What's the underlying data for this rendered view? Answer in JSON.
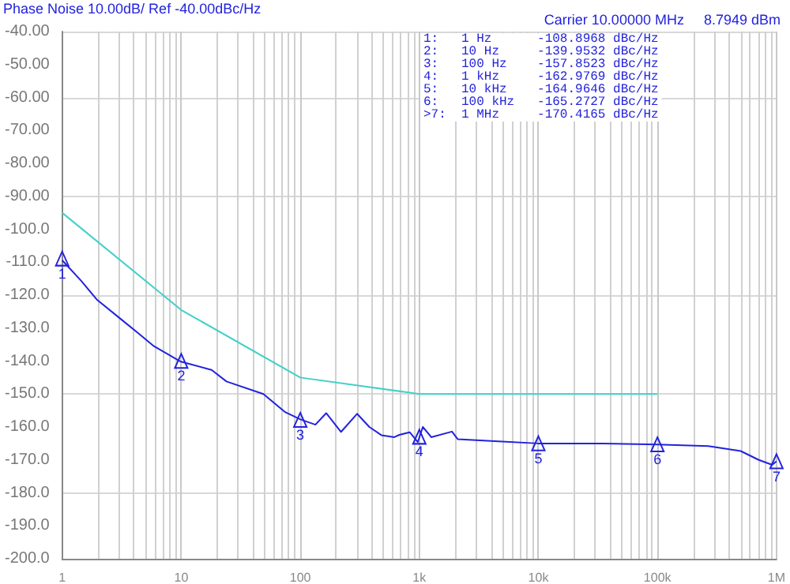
{
  "chart_data": {
    "type": "line",
    "title": "Phase Noise 10.00dB/ Ref -40.00dBc/Hz",
    "subtitle": "Carrier 10.00000 MHz     8.7949 dBm",
    "log": "x",
    "grid": true,
    "marker": "none",
    "line_style": "solid",
    "xlim": [
      1,
      1000000
    ],
    "xticks": [
      {
        "value": 1,
        "label": "1"
      },
      {
        "value": 10,
        "label": "10"
      },
      {
        "value": 100,
        "label": "100"
      },
      {
        "value": 1000,
        "label": "1k"
      },
      {
        "value": 10000,
        "label": "10k"
      },
      {
        "value": 100000,
        "label": "100k"
      },
      {
        "value": 1000000,
        "label": "1M"
      }
    ],
    "ylim": [
      -200,
      -40
    ],
    "yticks": [
      {
        "value": -40,
        "label": "-40.00"
      },
      {
        "value": -50,
        "label": "-50.00"
      },
      {
        "value": -60,
        "label": "-60.00"
      },
      {
        "value": -70,
        "label": "-70.00"
      },
      {
        "value": -80,
        "label": "-80.00"
      },
      {
        "value": -90,
        "label": "-90.00"
      },
      {
        "value": -100,
        "label": "-100.0"
      },
      {
        "value": -110,
        "label": "-110.0"
      },
      {
        "value": -120,
        "label": "-120.0"
      },
      {
        "value": -130,
        "label": "-130.0"
      },
      {
        "value": -140,
        "label": "-140.0"
      },
      {
        "value": -150,
        "label": "-150.0"
      },
      {
        "value": -160,
        "label": "-160.0"
      },
      {
        "value": -170,
        "label": "-170.0"
      },
      {
        "value": -180,
        "label": "-180.0"
      },
      {
        "value": -190,
        "label": "-190.0"
      },
      {
        "value": -200,
        "label": "-200.0"
      }
    ],
    "series": [
      {
        "color": "#40d0c8",
        "x": [
          1,
          10,
          100,
          1000,
          100000
        ],
        "values": [
          -95,
          -124.5,
          -145,
          -150,
          -150
        ]
      },
      {
        "color": "#2222dd",
        "x": [
          1,
          1.44,
          1.95,
          3.07,
          4.4,
          5.9,
          9.8,
          18,
          24,
          49,
          74,
          100,
          134,
          165,
          220,
          300,
          380,
          480,
          617,
          680,
          830,
          970,
          1070,
          1260,
          1880,
          2100,
          4600,
          10000,
          35000,
          100000,
          268000,
          500000,
          710000,
          920000,
          1000000
        ],
        "values": [
          -109.4,
          -115.6,
          -121.3,
          -127.1,
          -131.7,
          -135.5,
          -140.1,
          -142.7,
          -146.2,
          -150,
          -155.4,
          -157.7,
          -159.3,
          -155.8,
          -161.5,
          -156,
          -160,
          -162.5,
          -163.1,
          -162.4,
          -161.6,
          -164.6,
          -160,
          -163.1,
          -161.4,
          -163.7,
          -164.4,
          -165,
          -165,
          -165.3,
          -165.8,
          -167.3,
          -170,
          -171.5,
          -170.4
        ]
      }
    ],
    "annotations": [
      {
        "text": "1",
        "x": 1,
        "y": -108.8968
      },
      {
        "text": "2",
        "x": 10,
        "y": -139.9532
      },
      {
        "text": "3",
        "x": 100,
        "y": -157.8523
      },
      {
        "text": "4",
        "x": 1000,
        "y": -162.9769
      },
      {
        "text": "5",
        "x": 10000,
        "y": -164.9646
      },
      {
        "text": "6",
        "x": 100000,
        "y": -165.2727
      },
      {
        "text": "7",
        "x": 1000000,
        "y": -170.4165
      },
      "1:   1 Hz      -108.8968 dBc/Hz",
      "2:   10 Hz     -139.9532 dBc/Hz",
      "3:   100 Hz    -157.8523 dBc/Hz",
      "4:   1 kHz     -162.9769 dBc/Hz",
      "5:   10 kHz    -164.9646 dBc/Hz",
      "6:   100 kHz   -165.2727 dBc/Hz",
      ">7:  1 MHz     -170.4165 dBc/Hz"
    ]
  }
}
